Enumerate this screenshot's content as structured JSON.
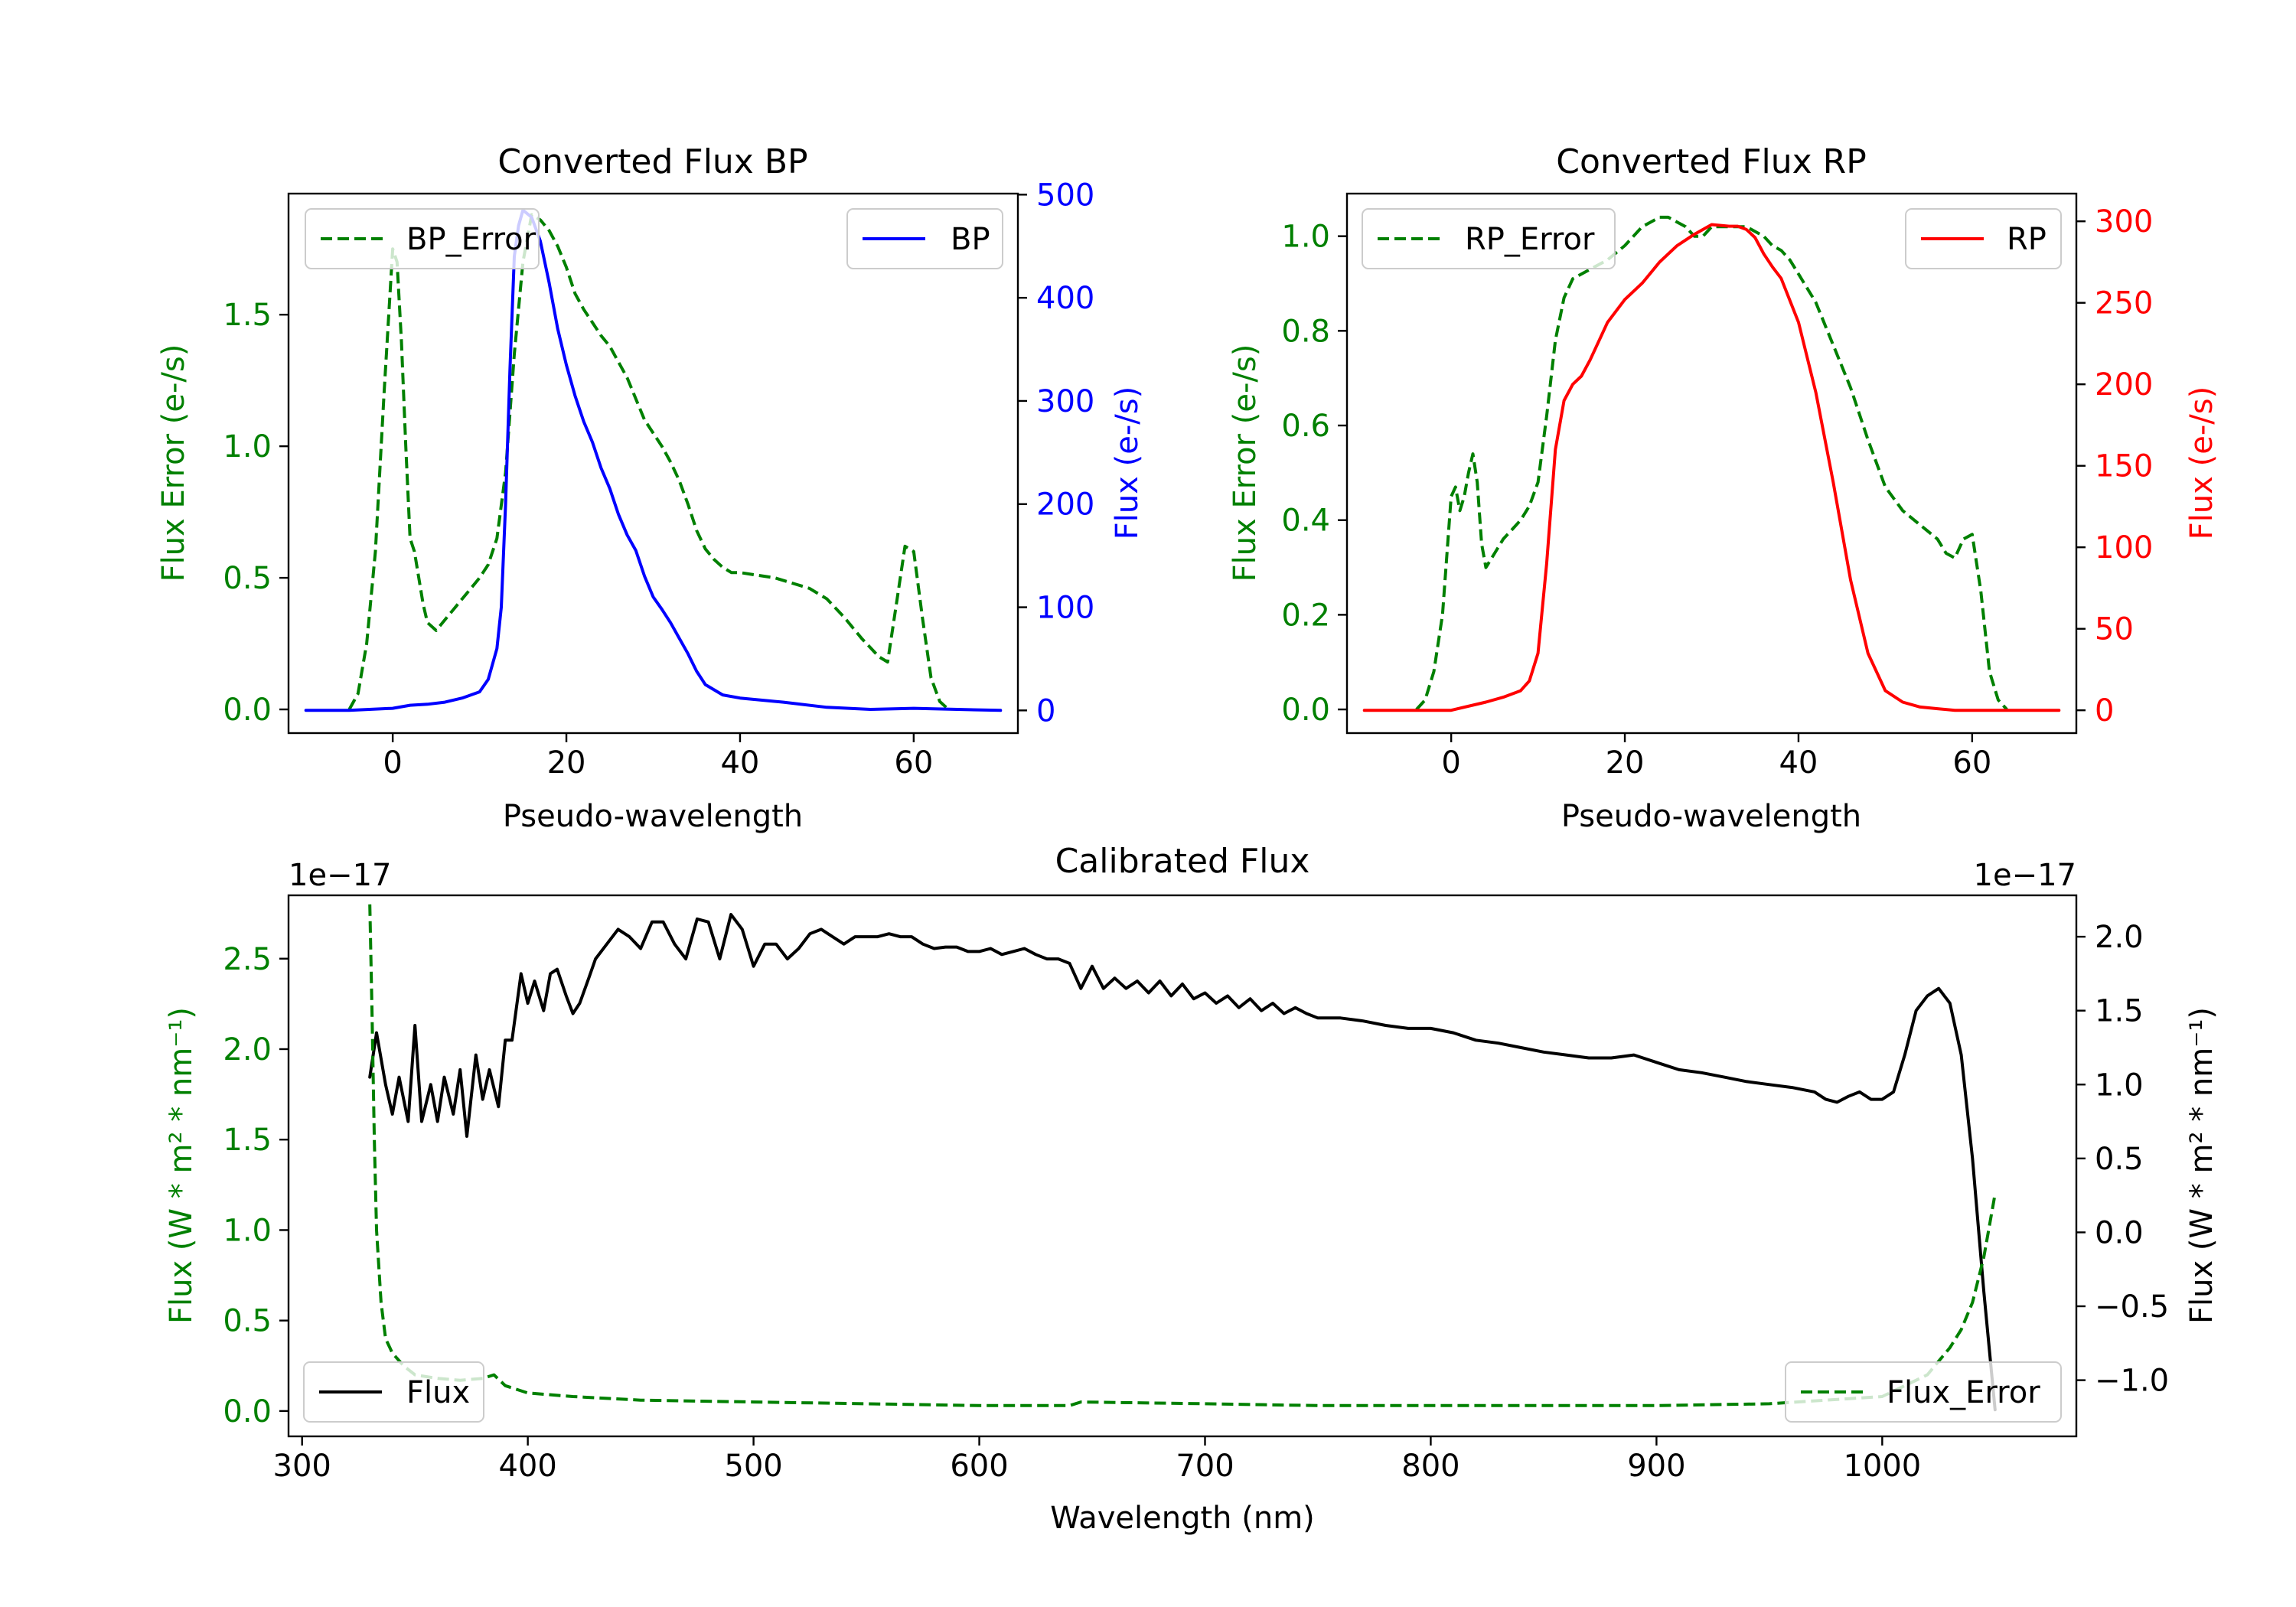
{
  "figure": {
    "colors": {
      "error": "#008000",
      "bp": "#0000ff",
      "rp": "#ff0000",
      "flux": "#000000"
    }
  },
  "chart_data": [
    {
      "id": "bp",
      "type": "line",
      "title": "Converted Flux BP",
      "xlabel": "Pseudo-wavelength",
      "ylabel_left": "Flux Error (e-/s)",
      "ylabel_right": "Flux (e-/s)",
      "xlim": [
        -12,
        72
      ],
      "ylim_left": [
        -0.09,
        1.96
      ],
      "ylim_right": [
        -22,
        501
      ],
      "xticks": [
        0,
        20,
        40,
        60
      ],
      "yticks_left": [
        0.0,
        0.5,
        1.0,
        1.5
      ],
      "yticks_right": [
        0,
        100,
        200,
        300,
        400,
        500
      ],
      "legend_left": "BP_Error",
      "legend_right": "BP",
      "series": [
        {
          "name": "BP_Error",
          "axis": "left",
          "style": "dashed",
          "color": "#008000",
          "x": [
            -5,
            -4,
            -3,
            -2,
            -1,
            0,
            0.5,
            1,
            1.5,
            2,
            2.5,
            3,
            3.5,
            4,
            5,
            6,
            7,
            8,
            9,
            10,
            11,
            12,
            13,
            14,
            15,
            16,
            17,
            18,
            19,
            20,
            21,
            22,
            23,
            24,
            25,
            26,
            27,
            28,
            29,
            30,
            31,
            32,
            33,
            34,
            35,
            36,
            37,
            38,
            39,
            40,
            42,
            44,
            46,
            48,
            50,
            52,
            54,
            56,
            57,
            58,
            59,
            60,
            61,
            62,
            63,
            64
          ],
          "y": [
            0.0,
            0.06,
            0.25,
            0.6,
            1.2,
            1.75,
            1.7,
            1.4,
            1.0,
            0.65,
            0.6,
            0.5,
            0.4,
            0.33,
            0.3,
            0.34,
            0.38,
            0.42,
            0.46,
            0.5,
            0.55,
            0.65,
            0.9,
            1.35,
            1.7,
            1.88,
            1.86,
            1.82,
            1.76,
            1.68,
            1.58,
            1.52,
            1.47,
            1.42,
            1.38,
            1.32,
            1.26,
            1.18,
            1.1,
            1.05,
            1.0,
            0.94,
            0.87,
            0.78,
            0.68,
            0.61,
            0.57,
            0.54,
            0.52,
            0.52,
            0.51,
            0.5,
            0.48,
            0.46,
            0.42,
            0.35,
            0.27,
            0.2,
            0.18,
            0.4,
            0.62,
            0.6,
            0.35,
            0.12,
            0.03,
            0.0
          ]
        },
        {
          "name": "BP",
          "axis": "right",
          "style": "solid",
          "color": "#0000ff",
          "x": [
            -10,
            -5,
            0,
            2,
            4,
            6,
            8,
            10,
            11,
            12,
            12.5,
            13,
            13.5,
            14,
            14.5,
            15,
            16,
            17,
            18,
            19,
            20,
            21,
            22,
            23,
            24,
            25,
            26,
            27,
            28,
            29,
            30,
            31,
            32,
            33,
            34,
            35,
            36,
            38,
            40,
            45,
            50,
            55,
            60,
            65,
            70
          ],
          "y": [
            0,
            0,
            2,
            5,
            6,
            8,
            12,
            18,
            30,
            60,
            100,
            200,
            330,
            440,
            470,
            485,
            478,
            455,
            415,
            370,
            335,
            305,
            280,
            260,
            235,
            215,
            190,
            170,
            155,
            130,
            110,
            98,
            85,
            70,
            55,
            38,
            25,
            15,
            12,
            8,
            3,
            1,
            2,
            1,
            0
          ]
        }
      ]
    },
    {
      "id": "rp",
      "type": "line",
      "title": "Converted Flux RP",
      "xlabel": "Pseudo-wavelength",
      "ylabel_left": "Flux Error (e-/s)",
      "ylabel_right": "Flux (e-/s)",
      "xlim": [
        -12,
        72
      ],
      "ylim_left": [
        -0.05,
        1.09
      ],
      "ylim_right": [
        -14,
        317
      ],
      "xticks": [
        0,
        20,
        40,
        60
      ],
      "yticks_left": [
        0.0,
        0.2,
        0.4,
        0.6,
        0.8,
        1.0
      ],
      "yticks_right": [
        0,
        50,
        100,
        150,
        200,
        250,
        300
      ],
      "legend_left": "RP_Error",
      "legend_right": "RP",
      "series": [
        {
          "name": "RP_Error",
          "axis": "left",
          "style": "dashed",
          "color": "#008000",
          "x": [
            -4,
            -3,
            -2,
            -1,
            0,
            0.5,
            1,
            1.5,
            2,
            2.5,
            3,
            3.5,
            4,
            5,
            6,
            7,
            8,
            9,
            10,
            11,
            12,
            13,
            14,
            15,
            16,
            18,
            20,
            22,
            23,
            24,
            25,
            26,
            27,
            28,
            29,
            30,
            32,
            34,
            35,
            36,
            37,
            38,
            39,
            40,
            42,
            44,
            46,
            48,
            50,
            52,
            54,
            56,
            57,
            58,
            59,
            60,
            61,
            62,
            63,
            64
          ],
          "y": [
            0.0,
            0.02,
            0.08,
            0.2,
            0.45,
            0.47,
            0.42,
            0.45,
            0.5,
            0.54,
            0.48,
            0.35,
            0.3,
            0.33,
            0.36,
            0.38,
            0.4,
            0.43,
            0.48,
            0.62,
            0.78,
            0.87,
            0.91,
            0.92,
            0.93,
            0.95,
            0.98,
            1.02,
            1.03,
            1.04,
            1.04,
            1.03,
            1.02,
            1.0,
            1.0,
            1.02,
            1.02,
            1.02,
            1.01,
            1.0,
            0.98,
            0.97,
            0.95,
            0.92,
            0.86,
            0.77,
            0.68,
            0.57,
            0.47,
            0.42,
            0.39,
            0.36,
            0.33,
            0.32,
            0.36,
            0.37,
            0.25,
            0.08,
            0.02,
            0.0
          ]
        },
        {
          "name": "RP",
          "axis": "right",
          "style": "solid",
          "color": "#ff0000",
          "x": [
            -10,
            0,
            4,
            6,
            8,
            9,
            10,
            11,
            12,
            13,
            14,
            15,
            16,
            18,
            20,
            22,
            24,
            26,
            28,
            30,
            32,
            33,
            34,
            35,
            36,
            37,
            38,
            40,
            42,
            44,
            46,
            48,
            50,
            52,
            54,
            56,
            58,
            60,
            65,
            70
          ],
          "y": [
            0,
            0,
            5,
            8,
            12,
            18,
            35,
            90,
            160,
            190,
            200,
            205,
            215,
            238,
            252,
            262,
            275,
            285,
            292,
            298,
            297,
            297,
            295,
            290,
            280,
            272,
            265,
            238,
            195,
            140,
            80,
            35,
            12,
            5,
            2,
            1,
            0,
            0,
            0,
            0
          ]
        }
      ]
    },
    {
      "id": "cal",
      "type": "line",
      "title": "Calibrated Flux",
      "xlabel": "Wavelength (nm)",
      "ylabel_left": "Flux (W * m² * nm⁻¹)",
      "ylabel_right": "Flux (W * m² * nm⁻¹)",
      "offset_left": "1e−17",
      "offset_right": "1e−17",
      "xlim": [
        294,
        1086
      ],
      "ylim_left": [
        -0.14,
        2.85
      ],
      "ylim_right": [
        -1.38,
        2.28
      ],
      "xticks": [
        300,
        400,
        500,
        600,
        700,
        800,
        900,
        1000
      ],
      "yticks_left": [
        0.0,
        0.5,
        1.0,
        1.5,
        2.0,
        2.5
      ],
      "yticks_right": [
        -1.0,
        -0.5,
        0.0,
        0.5,
        1.0,
        1.5,
        2.0
      ],
      "legend_left": "Flux",
      "legend_right": "Flux_Error",
      "series": [
        {
          "name": "Flux",
          "axis": "right",
          "style": "solid",
          "color": "#000000",
          "x": [
            330,
            333,
            337,
            340,
            343,
            347,
            350,
            353,
            357,
            360,
            363,
            367,
            370,
            373,
            377,
            380,
            383,
            387,
            390,
            393,
            397,
            400,
            403,
            407,
            410,
            413,
            417,
            420,
            423,
            427,
            430,
            435,
            440,
            445,
            450,
            455,
            460,
            465,
            470,
            475,
            480,
            485,
            490,
            495,
            500,
            505,
            510,
            515,
            520,
            525,
            530,
            535,
            540,
            545,
            550,
            555,
            560,
            565,
            570,
            575,
            580,
            585,
            590,
            595,
            600,
            605,
            610,
            615,
            620,
            625,
            630,
            635,
            640,
            645,
            650,
            655,
            660,
            665,
            670,
            675,
            680,
            685,
            690,
            695,
            700,
            705,
            710,
            715,
            720,
            725,
            730,
            735,
            740,
            745,
            750,
            760,
            770,
            780,
            790,
            800,
            810,
            820,
            830,
            840,
            850,
            860,
            870,
            880,
            890,
            900,
            910,
            920,
            930,
            940,
            950,
            960,
            970,
            975,
            980,
            985,
            990,
            995,
            1000,
            1005,
            1010,
            1015,
            1020,
            1025,
            1030,
            1035,
            1040,
            1045,
            1050
          ],
          "y": [
            1.05,
            1.35,
            1.0,
            0.8,
            1.05,
            0.75,
            1.4,
            0.75,
            1.0,
            0.75,
            1.05,
            0.8,
            1.1,
            0.65,
            1.2,
            0.9,
            1.1,
            0.85,
            1.3,
            1.3,
            1.75,
            1.55,
            1.7,
            1.5,
            1.75,
            1.78,
            1.6,
            1.48,
            1.55,
            1.72,
            1.85,
            1.95,
            2.05,
            2.0,
            1.92,
            2.1,
            2.1,
            1.95,
            1.85,
            2.12,
            2.1,
            1.85,
            2.15,
            2.05,
            1.8,
            1.95,
            1.95,
            1.85,
            1.92,
            2.02,
            2.05,
            2.0,
            1.95,
            2.0,
            2.0,
            2.0,
            2.02,
            2.0,
            2.0,
            1.95,
            1.92,
            1.93,
            1.93,
            1.9,
            1.9,
            1.92,
            1.88,
            1.9,
            1.92,
            1.88,
            1.85,
            1.85,
            1.82,
            1.65,
            1.8,
            1.65,
            1.72,
            1.65,
            1.7,
            1.62,
            1.7,
            1.6,
            1.68,
            1.58,
            1.62,
            1.55,
            1.6,
            1.52,
            1.58,
            1.5,
            1.55,
            1.48,
            1.52,
            1.48,
            1.45,
            1.45,
            1.43,
            1.4,
            1.38,
            1.38,
            1.35,
            1.3,
            1.28,
            1.25,
            1.22,
            1.2,
            1.18,
            1.18,
            1.2,
            1.15,
            1.1,
            1.08,
            1.05,
            1.02,
            1.0,
            0.98,
            0.95,
            0.9,
            0.88,
            0.92,
            0.95,
            0.9,
            0.9,
            0.95,
            1.2,
            1.5,
            1.6,
            1.65,
            1.55,
            1.2,
            0.5,
            -0.4,
            -1.2
          ]
        },
        {
          "name": "Flux_Error",
          "axis": "left",
          "style": "dashed",
          "color": "#008000",
          "x": [
            330,
            331,
            332,
            333,
            335,
            337,
            340,
            345,
            350,
            360,
            370,
            380,
            385,
            390,
            400,
            420,
            450,
            500,
            550,
            600,
            640,
            645,
            700,
            750,
            800,
            850,
            900,
            950,
            1000,
            1020,
            1030,
            1035,
            1040,
            1045,
            1050
          ],
          "y": [
            2.8,
            2.2,
            1.5,
            1.0,
            0.6,
            0.4,
            0.32,
            0.25,
            0.2,
            0.18,
            0.17,
            0.18,
            0.2,
            0.14,
            0.1,
            0.08,
            0.06,
            0.05,
            0.04,
            0.03,
            0.03,
            0.05,
            0.04,
            0.03,
            0.03,
            0.03,
            0.03,
            0.04,
            0.08,
            0.2,
            0.35,
            0.45,
            0.6,
            0.85,
            1.2
          ]
        }
      ]
    }
  ]
}
